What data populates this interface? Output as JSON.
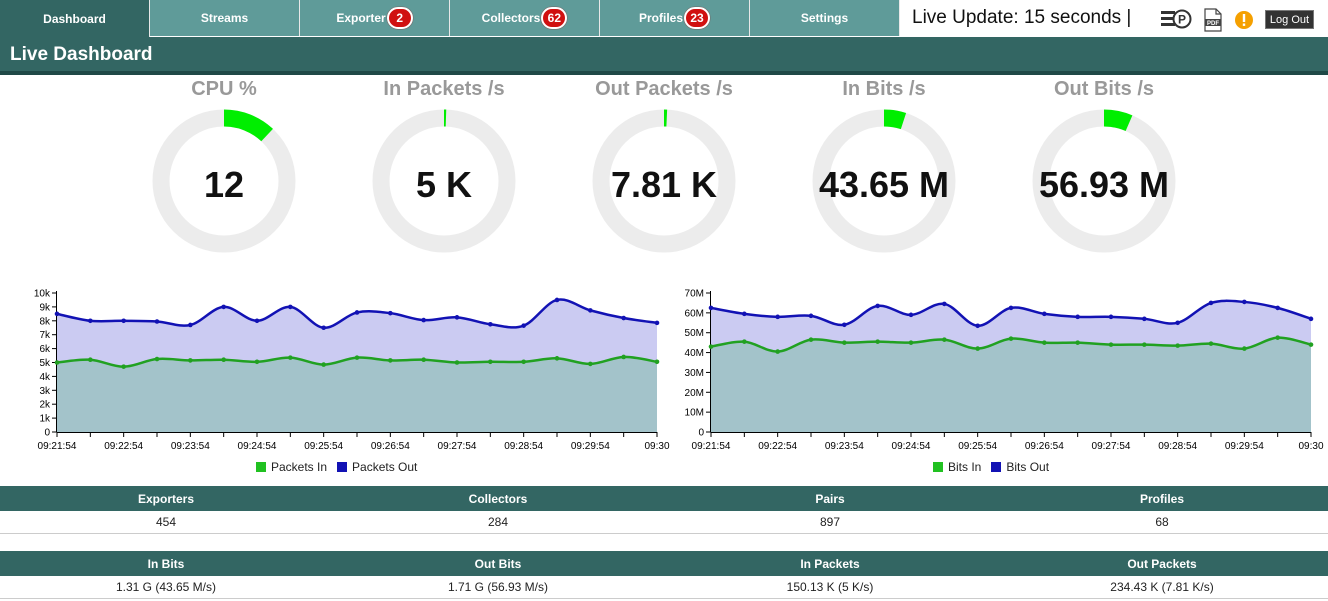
{
  "nav": {
    "tabs": [
      {
        "label": "Dashboard",
        "badge": ""
      },
      {
        "label": "Streams",
        "badge": ""
      },
      {
        "label": "Exporter",
        "badge": "2"
      },
      {
        "label": "Collectors",
        "badge": "62"
      },
      {
        "label": "Profiles",
        "badge": "23"
      },
      {
        "label": "Settings",
        "badge": ""
      }
    ],
    "live_update": "Live Update: 15 seconds |",
    "logout_label": "Log Out",
    "icons": [
      "profiles-icon",
      "pdf-icon",
      "alert-icon"
    ]
  },
  "page_title": "Live Dashboard",
  "gauges": [
    {
      "title": "CPU %",
      "value": "12",
      "fraction": 0.12
    },
    {
      "title": "In Packets /s",
      "value": "5 K",
      "fraction": 0.005
    },
    {
      "title": "Out Packets /s",
      "value": "7.81 K",
      "fraction": 0.007
    },
    {
      "title": "In Bits /s",
      "value": "43.65 M",
      "fraction": 0.05
    },
    {
      "title": "Out Bits /s",
      "value": "56.93 M",
      "fraction": 0.065
    }
  ],
  "colors": {
    "header": "#336663",
    "tab": "#5f9b99",
    "gauge_track": "#ececec",
    "gauge_fill": "#00ee00",
    "series_in": "#21a121",
    "series_out": "#1212b4",
    "area_in": "#a3c3ca",
    "area_out": "#cbcbf2"
  },
  "chart_data": [
    {
      "type": "area",
      "x": [
        "09:21:54",
        "09:22:24",
        "09:22:54",
        "09:23:24",
        "09:23:54",
        "09:24:24",
        "09:24:54",
        "09:25:24",
        "09:25:54",
        "09:26:24",
        "09:26:54",
        "09:27:24",
        "09:27:54",
        "09:28:24",
        "09:28:54",
        "09:29:24",
        "09:29:54",
        "09:30:24",
        "09:30:54"
      ],
      "x_ticks": [
        "09:21:54",
        "09:22:54",
        "09:23:54",
        "09:24:54",
        "09:25:54",
        "09:26:54",
        "09:27:54",
        "09:28:54",
        "09:29:54",
        "09:30"
      ],
      "y_ticks": [
        "0",
        "1k",
        "2k",
        "3k",
        "4k",
        "5k",
        "6k",
        "7k",
        "8k",
        "9k",
        "10k"
      ],
      "ylim": [
        0,
        10000
      ],
      "series": [
        {
          "name": "Packets In",
          "values": [
            5000,
            5200,
            4700,
            5250,
            5150,
            5200,
            5050,
            5350,
            4850,
            5350,
            5150,
            5200,
            5000,
            5050,
            5050,
            5300,
            4900,
            5400,
            5050
          ]
        },
        {
          "name": "Packets Out",
          "values": [
            8500,
            8000,
            8000,
            7950,
            7700,
            9000,
            8000,
            9000,
            7500,
            8600,
            8550,
            8050,
            8250,
            7750,
            7650,
            9500,
            8750,
            8200,
            7850
          ]
        }
      ],
      "legend": "bottom"
    },
    {
      "type": "area",
      "x": [
        "09:21:54",
        "09:22:24",
        "09:22:54",
        "09:23:24",
        "09:23:54",
        "09:24:24",
        "09:24:54",
        "09:25:24",
        "09:25:54",
        "09:26:24",
        "09:26:54",
        "09:27:24",
        "09:27:54",
        "09:28:24",
        "09:28:54",
        "09:29:24",
        "09:29:54",
        "09:30:24",
        "09:30:54"
      ],
      "x_ticks": [
        "09:21:54",
        "09:22:54",
        "09:23:54",
        "09:24:54",
        "09:25:54",
        "09:26:54",
        "09:27:54",
        "09:28:54",
        "09:29:54",
        "09:30"
      ],
      "y_ticks": [
        "0",
        "10M",
        "20M",
        "30M",
        "40M",
        "50M",
        "60M",
        "70M"
      ],
      "ylim": [
        0,
        70000000
      ],
      "series": [
        {
          "name": "Bits In",
          "values": [
            43000000,
            45500000,
            40500000,
            46500000,
            45000000,
            45500000,
            45000000,
            46500000,
            42000000,
            47000000,
            45000000,
            45000000,
            44000000,
            44000000,
            43500000,
            44500000,
            42000000,
            47500000,
            44000000
          ]
        },
        {
          "name": "Bits Out",
          "values": [
            62500000,
            59500000,
            58000000,
            58500000,
            54000000,
            63500000,
            59000000,
            64500000,
            53500000,
            62500000,
            59500000,
            58000000,
            58000000,
            57000000,
            55000000,
            65000000,
            65500000,
            62500000,
            57000000
          ]
        }
      ],
      "legend": "bottom"
    }
  ],
  "summary_table": {
    "headers": [
      "Exporters",
      "Collectors",
      "Pairs",
      "Profiles"
    ],
    "values": [
      "454",
      "284",
      "897",
      "68"
    ]
  },
  "traffic_table": {
    "headers": [
      "In Bits",
      "Out Bits",
      "In Packets",
      "Out Packets"
    ],
    "values": [
      "1.31 G (43.65 M/s)",
      "1.71 G (56.93 M/s)",
      "150.13 K (5 K/s)",
      "234.43 K (7.81 K/s)"
    ]
  }
}
